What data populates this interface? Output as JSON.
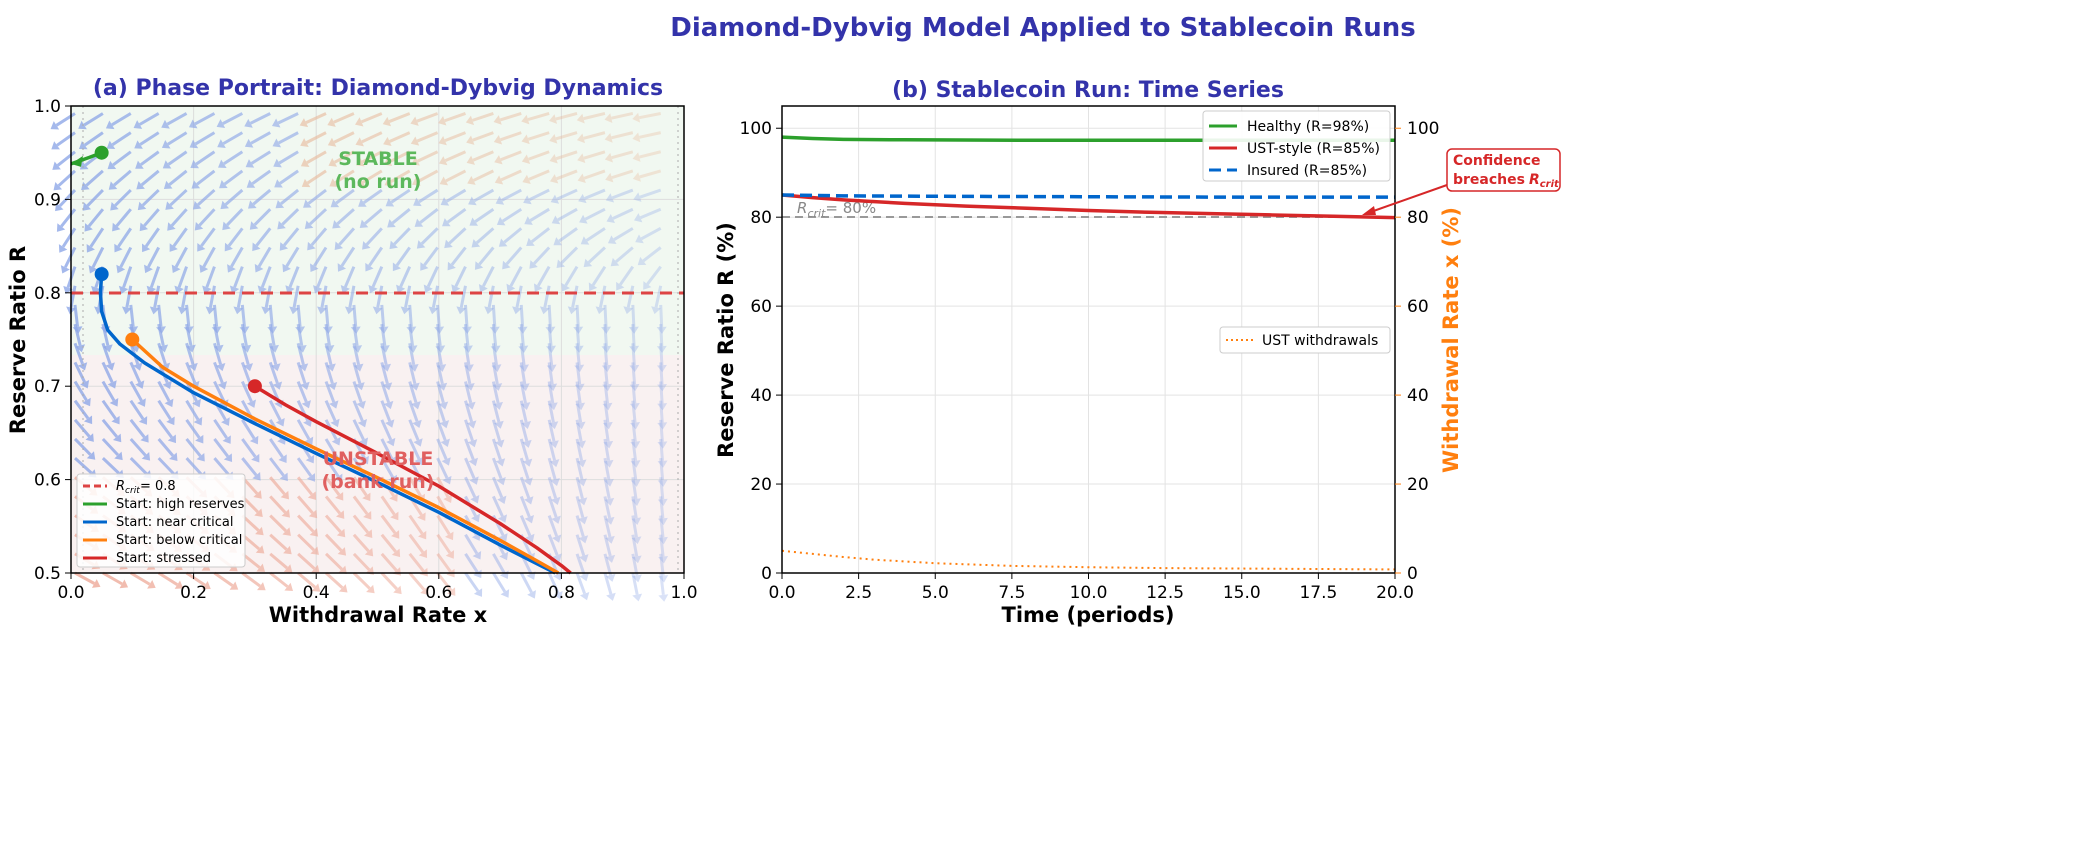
{
  "suptitle": "Diamond-Dybvig Model Applied to Stablecoin Runs",
  "colors": {
    "title": "#3333aa",
    "green": "#2ca02c",
    "blue": "#0066cc",
    "orange": "#ff7f0e",
    "red": "#d62728",
    "crit": "#dd4444"
  },
  "chart_data": [
    {
      "type": "line",
      "title": "(a) Phase Portrait: Diamond-Dybvig Dynamics",
      "xlabel": "Withdrawal Rate x",
      "ylabel": "Reserve Ratio R",
      "xlim": [
        0,
        1
      ],
      "ylim": [
        0.5,
        1.0
      ],
      "xticks": [
        "0.0",
        "0.2",
        "0.4",
        "0.6",
        "0.8",
        "1.0"
      ],
      "yticks": [
        "0.5",
        "0.6",
        "0.7",
        "0.8",
        "0.9",
        "1.0"
      ],
      "grid": true,
      "legend": "lower-left",
      "regions": {
        "stable": "STABLE\n(no run)",
        "unstable": "UNSTABLE\n(bank run)",
        "stable_label_1": "STABLE",
        "stable_label_2": "(no run)",
        "unstable_label_1": "UNSTABLE",
        "unstable_label_2": "(bank run)"
      },
      "critical_line": {
        "name": "R_crit = 0.8",
        "legend_label": "= 0.8",
        "y": 0.8
      },
      "series": [
        {
          "name": "Start: high reserves",
          "color": "#2ca02c",
          "x": [
            0.05,
            0.03,
            0.0
          ],
          "y": [
            0.95,
            0.945,
            0.938
          ]
        },
        {
          "name": "Start: near critical",
          "color": "#0066cc",
          "x": [
            0.05,
            0.048,
            0.05,
            0.06,
            0.08,
            0.12,
            0.2,
            0.3,
            0.4,
            0.5,
            0.6,
            0.7,
            0.76,
            0.79
          ],
          "y": [
            0.82,
            0.8,
            0.78,
            0.76,
            0.745,
            0.725,
            0.693,
            0.66,
            0.628,
            0.597,
            0.565,
            0.53,
            0.51,
            0.5
          ]
        },
        {
          "name": "Start: below critical",
          "color": "#ff7f0e",
          "x": [
            0.1,
            0.15,
            0.2,
            0.3,
            0.4,
            0.5,
            0.6,
            0.7,
            0.76,
            0.795
          ],
          "y": [
            0.75,
            0.72,
            0.7,
            0.665,
            0.633,
            0.602,
            0.57,
            0.535,
            0.513,
            0.5
          ]
        },
        {
          "name": "Start: stressed",
          "color": "#d62728",
          "x": [
            0.3,
            0.35,
            0.4,
            0.5,
            0.6,
            0.7,
            0.76,
            0.8,
            0.815
          ],
          "y": [
            0.7,
            0.68,
            0.662,
            0.628,
            0.593,
            0.553,
            0.527,
            0.508,
            0.5
          ]
        }
      ]
    },
    {
      "type": "line",
      "title": "(b) Stablecoin Run: Time Series",
      "xlabel": "Time (periods)",
      "ylabel": "Reserve Ratio R (%)",
      "ylabel_right": "Withdrawal Rate x (%)",
      "xlim": [
        0,
        20
      ],
      "ylim": [
        0,
        105
      ],
      "ylim_right": [
        0,
        105
      ],
      "xticks": [
        "0.0",
        "2.5",
        "5.0",
        "7.5",
        "10.0",
        "12.5",
        "15.0",
        "17.5",
        "20.0"
      ],
      "yticks": [
        "0",
        "20",
        "40",
        "60",
        "80",
        "100"
      ],
      "yticks_right": [
        "0",
        "20",
        "40",
        "60",
        "80",
        "100"
      ],
      "grid": true,
      "legend": "upper-right",
      "reference_line": {
        "label": "= 80%",
        "y": 80
      },
      "annotation": {
        "line1": "Confidence",
        "line2": "breaches",
        "x": 19,
        "y": 80
      },
      "series": [
        {
          "name": "Healthy (R=98%)",
          "color": "#2ca02c",
          "style": "solid",
          "x": [
            0,
            1,
            2,
            4,
            8,
            12,
            16,
            20
          ],
          "y": [
            98,
            97.7,
            97.5,
            97.4,
            97.3,
            97.3,
            97.3,
            97.3
          ]
        },
        {
          "name": "UST-style (R=85%)",
          "color": "#d62728",
          "style": "solid",
          "x": [
            0,
            1,
            2,
            4,
            6,
            8,
            10,
            12,
            14,
            16,
            18,
            20
          ],
          "y": [
            85,
            84.4,
            83.9,
            83.1,
            82.5,
            82.0,
            81.5,
            81.1,
            80.8,
            80.5,
            80.2,
            79.9
          ]
        },
        {
          "name": "Insured (R=85%)",
          "color": "#0066cc",
          "style": "dashed",
          "x": [
            0,
            2,
            5,
            10,
            15,
            20
          ],
          "y": [
            85,
            84.8,
            84.7,
            84.6,
            84.5,
            84.5
          ]
        },
        {
          "name": "UST withdrawals",
          "color": "#ff7f0e",
          "style": "dotted",
          "axis": "right",
          "x": [
            0,
            1,
            2,
            3,
            5,
            7.5,
            10,
            12.5,
            15,
            17.5,
            20
          ],
          "y": [
            5,
            4.3,
            3.6,
            3.0,
            2.2,
            1.6,
            1.3,
            1.1,
            1.0,
            0.9,
            0.8
          ]
        }
      ]
    }
  ]
}
